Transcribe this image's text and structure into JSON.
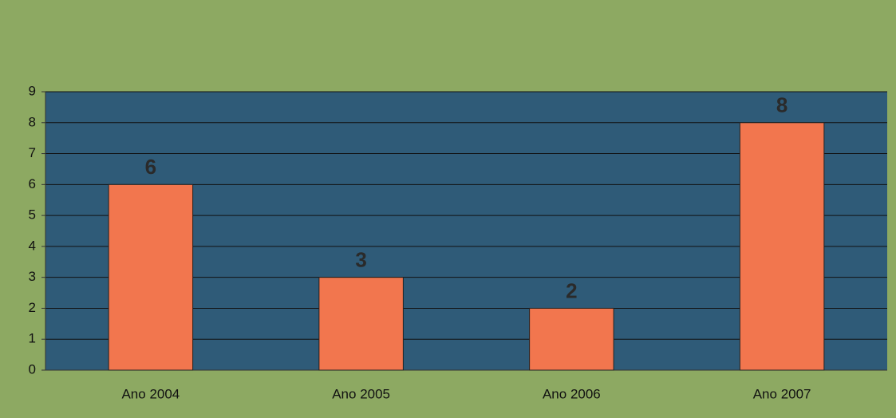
{
  "chart_data": {
    "type": "bar",
    "categories": [
      "Ano 2004",
      "Ano 2005",
      "Ano 2006",
      "Ano 2007"
    ],
    "values": [
      6,
      3,
      2,
      8
    ],
    "color": "#f2764e",
    "ylim": [
      0,
      9
    ],
    "yticks": [
      0,
      1,
      2,
      3,
      4,
      5,
      6,
      7,
      8,
      9
    ],
    "grid": true
  }
}
